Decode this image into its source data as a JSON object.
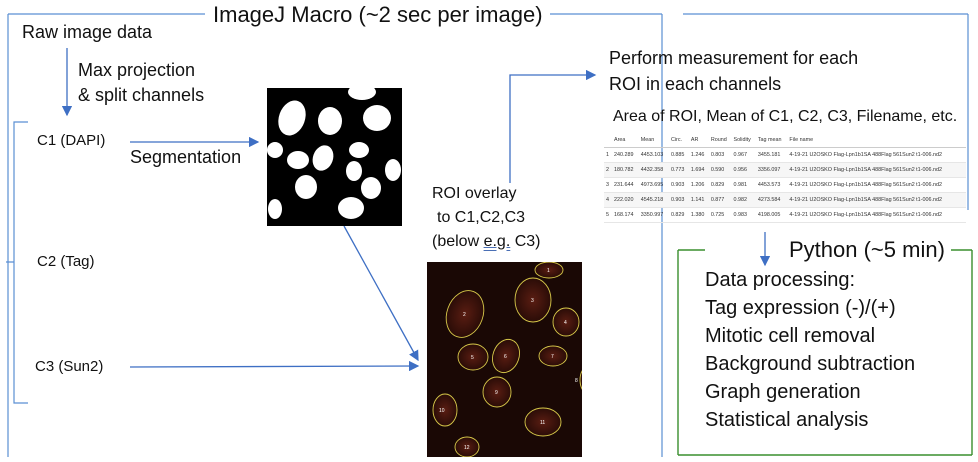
{
  "diagram": {
    "title": "ImageJ Macro (~2 sec per image)",
    "raw_data": "Raw image data",
    "step_projection": [
      "Max projection",
      "& split channels"
    ],
    "channels": [
      "C1 (DAPI)",
      "C2 (Tag)",
      "C3 (Sun2)"
    ],
    "segmentation": "Segmentation",
    "roi_overlay": [
      "ROI overlay",
      "to C1,C2,C3"
    ],
    "roi_below_prefix": "(below ",
    "roi_below_eg": "e.g.",
    "roi_below_suffix": " C3)",
    "measurement": [
      "Perform measurement for each",
      "ROI in each channels"
    ],
    "measurement_detail": "Area of ROI, Mean of C1, C2, C3, Filename, etc.",
    "python_title": "Python (~5 min)",
    "python_steps": [
      "Data processing:",
      "Tag expression (-)/(+)",
      "Mitotic cell removal",
      "Background subtraction",
      "Graph generation",
      "Statistical analysis"
    ],
    "colors": {
      "frame_blue": "#5b8fd3",
      "arrow_blue": "#3e6fc4",
      "python_green": "#3a8f2e",
      "roi_outline": "#d8c94a"
    }
  },
  "measure_table": {
    "headers": [
      "",
      "Area",
      "Mean",
      "Circ.",
      "AR",
      "Round",
      "Solidity",
      "Tag mean",
      "File name"
    ],
    "rows": [
      [
        "1",
        "240.289",
        "4453.103",
        "0.885",
        "1.246",
        "0.803",
        "0.967",
        "3455.181",
        "4-19-21 U2OSKO Flag-Lpn1b1SA 488Flag 561Sun2 t1-006.nd2"
      ],
      [
        "2",
        "180.782",
        "4432.358",
        "0.773",
        "1.694",
        "0.590",
        "0.956",
        "3356.097",
        "4-19-21 U2OSKO Flag-Lpn1b1SA 488Flag 561Sun2 t1-006.nd2"
      ],
      [
        "3",
        "231.644",
        "4973.695",
        "0.903",
        "1.206",
        "0.829",
        "0.981",
        "4453.573",
        "4-19-21 U2OSKO Flag-Lpn1b1SA 488Flag 561Sun2 t1-006.nd2"
      ],
      [
        "4",
        "222.020",
        "4545.218",
        "0.903",
        "1.141",
        "0.877",
        "0.982",
        "4273.584",
        "4-19-21 U2OSKO Flag-Lpn1b1SA 488Flag 561Sun2 t1-006.nd2"
      ],
      [
        "5",
        "168.174",
        "3350.997",
        "0.829",
        "1.380",
        "0.725",
        "0.983",
        "4198.005",
        "4-19-21 U2OSKO Flag-Lpn1b1SA 488Flag 561Sun2 t1-006.nd2"
      ]
    ]
  },
  "roi_labels": [
    "1",
    "2",
    "3",
    "4",
    "5",
    "6",
    "7",
    "8",
    "9",
    "10",
    "11",
    "12"
  ]
}
